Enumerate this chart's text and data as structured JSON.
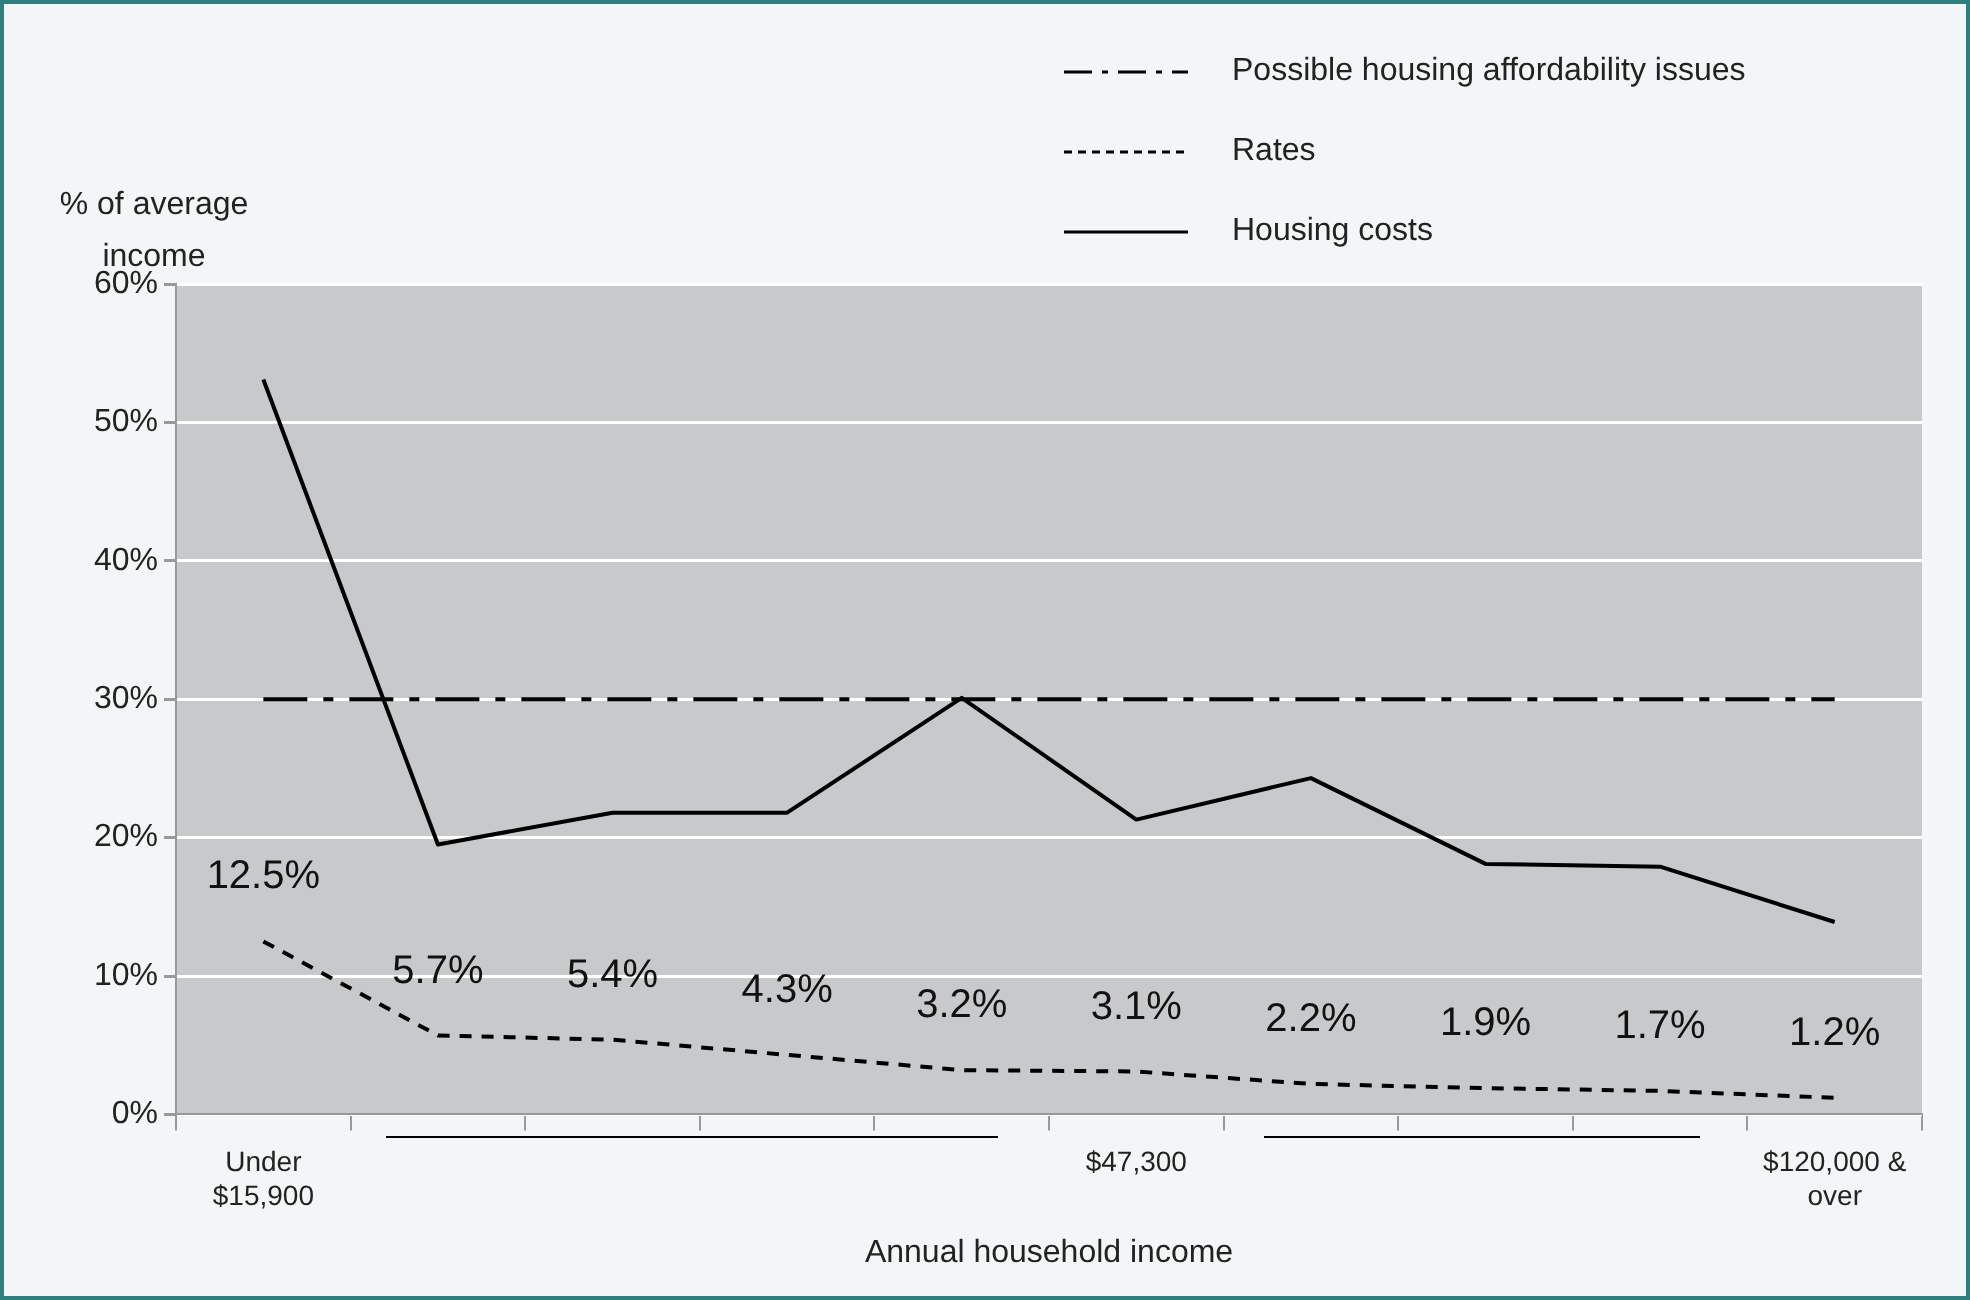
{
  "chart_data": {
    "type": "line",
    "xlabel": "Annual household income",
    "ylabel": "% of average income",
    "categories": [
      "Under $15,900",
      null,
      null,
      null,
      null,
      "$47,300",
      null,
      null,
      null,
      "$120,000 & over"
    ],
    "series": [
      {
        "name": "Possible housing affordability issues",
        "color": "#000000",
        "line_style": "dashed",
        "values": [
          30,
          30,
          30,
          30,
          30,
          30,
          30,
          30,
          30,
          30
        ]
      },
      {
        "name": "Rates",
        "color": "#000000",
        "line_style": "dotted",
        "values": [
          12.5,
          5.7,
          5.4,
          4.3,
          3.2,
          3.1,
          2.2,
          1.9,
          1.7,
          1.2
        ],
        "value_labels": [
          "12.5%",
          "5.7%",
          "5.4%",
          "4.3%",
          "3.2%",
          "3.1%",
          "2.2%",
          "1.9%",
          "1.7%",
          "1.2%"
        ]
      },
      {
        "name": "Housing costs",
        "color": "#000000",
        "line_style": "solid",
        "values": [
          53.1,
          19.5,
          21.8,
          21.8,
          30.1,
          21.3,
          24.3,
          18.1,
          17.9,
          13.9
        ]
      }
    ],
    "ylim": [
      0,
      60
    ],
    "yticks": [
      {
        "value": 0,
        "label": "0%"
      },
      {
        "value": 10,
        "label": "10%"
      },
      {
        "value": 20,
        "label": "20%"
      },
      {
        "value": 30,
        "label": "30%"
      },
      {
        "value": 40,
        "label": "40%"
      },
      {
        "value": 50,
        "label": "50%"
      },
      {
        "value": 60,
        "label": "60%"
      }
    ],
    "grid": "y",
    "legend": "top right",
    "marker": "none"
  }
}
